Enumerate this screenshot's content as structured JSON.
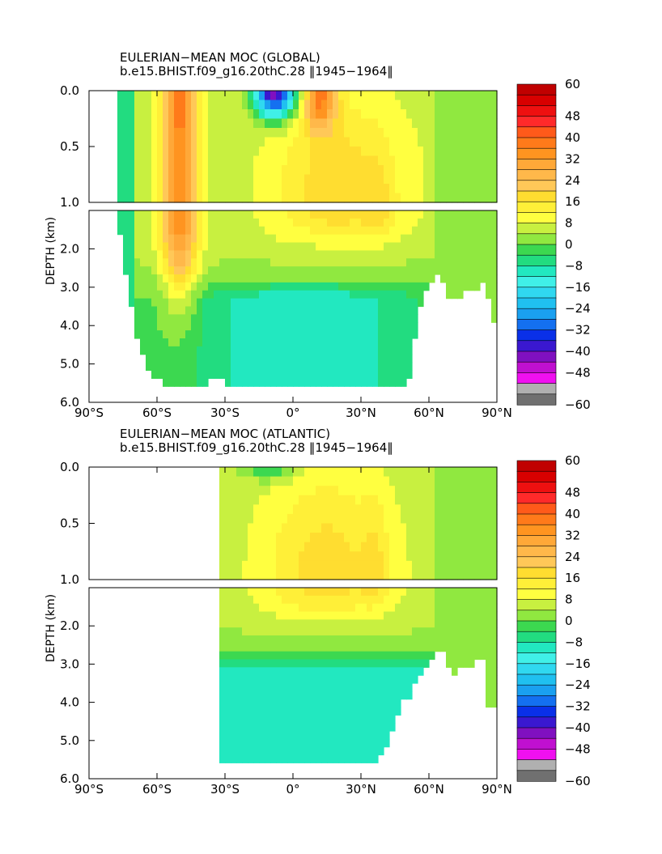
{
  "colors": {
    "background": "#ffffff",
    "axis": "#000000"
  },
  "colorbar": {
    "levels": [
      60,
      56,
      52,
      48,
      44,
      40,
      36,
      32,
      28,
      24,
      20,
      16,
      12,
      8,
      4,
      0,
      -4,
      -8,
      -12,
      -16,
      -20,
      -24,
      -28,
      -32,
      -36,
      -40,
      -44,
      -48,
      -52,
      -56
    ],
    "colors": [
      "#c00000",
      "#d80000",
      "#ee1010",
      "#ff2a2a",
      "#ff5a1a",
      "#ff7a1a",
      "#ff9420",
      "#ffa838",
      "#ffb84a",
      "#ffc858",
      "#ffdd30",
      "#ffef38",
      "#ffff40",
      "#c8f040",
      "#90e840",
      "#3cd850",
      "#22dc80",
      "#22e8c0",
      "#40f0e8",
      "#30d8f0",
      "#20c0f0",
      "#1aa0f0",
      "#1470f0",
      "#0a30e8",
      "#3a18d0",
      "#8010c0",
      "#c010d0",
      "#f010f0",
      "#b0b0b0",
      "#707070"
    ],
    "labels": [
      "60",
      "48",
      "40",
      "32",
      "24",
      "16",
      "8",
      "0",
      "−8",
      "−16",
      "−24",
      "−32",
      "−40",
      "−48",
      "−60"
    ],
    "label_levels": [
      60,
      48,
      40,
      32,
      24,
      16,
      8,
      0,
      -8,
      -16,
      -24,
      -32,
      -40,
      -48,
      -60
    ]
  },
  "chart_data": [
    {
      "type": "heatmap",
      "title": "EULERIAN−MEAN MOC (GLOBAL)",
      "subtitle": "b.e15.BHIST.f09_g16.20thC.28 ‖1945−1964‖",
      "ylabel": "DEPTH (km)",
      "xlim": [
        -90,
        90
      ],
      "ylim": [
        0,
        6
      ],
      "y_break_km": 1.0,
      "x_ticks": [
        -90,
        -60,
        -30,
        0,
        30,
        60,
        90
      ],
      "x_tick_labels": [
        "90°S",
        "60°S",
        "30°S",
        "0°",
        "30°N",
        "60°N",
        "90°N"
      ],
      "y_ticks_upper": [
        0.0,
        0.5,
        1.0
      ],
      "y_tick_labels_upper": [
        "0.0",
        "0.5",
        "1.0"
      ],
      "y_ticks_lower": [
        2.0,
        3.0,
        4.0,
        5.0,
        6.0
      ],
      "y_tick_labels_lower": [
        "2.0",
        "3.0",
        "4.0",
        "5.0",
        "6.0"
      ],
      "bathymetry": [
        [
          -78,
          0.7
        ],
        [
          -75,
          2.3
        ],
        [
          -72,
          3.4
        ],
        [
          -69,
          4.2
        ],
        [
          -66,
          4.8
        ],
        [
          -63,
          5.3
        ],
        [
          -57,
          5.5
        ],
        [
          -50,
          5.5
        ],
        [
          -45,
          5.5
        ],
        [
          -40,
          5.5
        ],
        [
          -34,
          5.4
        ],
        [
          -30,
          5.5
        ],
        [
          0,
          5.5
        ],
        [
          30,
          5.5
        ],
        [
          51,
          5.5
        ],
        [
          53,
          4.5
        ],
        [
          55,
          3.8
        ],
        [
          57,
          3.3
        ],
        [
          60,
          3.0
        ],
        [
          62,
          2.8
        ],
        [
          65,
          2.6
        ],
        [
          70,
          3.4
        ],
        [
          75,
          3.2
        ],
        [
          80,
          3.1
        ],
        [
          85,
          2.9
        ],
        [
          88,
          4.0
        ],
        [
          90,
          4.0
        ]
      ],
      "features": [
        {
          "lat": -50,
          "depth": 0.3,
          "value": 32
        },
        {
          "lat": -50,
          "depth": 2.5,
          "value": 28
        },
        {
          "lat": -10,
          "depth": 0.05,
          "value": -40
        },
        {
          "lat": 15,
          "depth": 0.1,
          "value": 36
        },
        {
          "lat": 30,
          "depth": 0.8,
          "value": 20
        },
        {
          "lat": 10,
          "depth": 1.6,
          "value": 16
        },
        {
          "lat": 0,
          "depth": 2.5,
          "value": 4
        },
        {
          "lat": 0,
          "depth": 4.3,
          "value": -6
        }
      ]
    },
    {
      "type": "heatmap",
      "title": "EULERIAN−MEAN MOC (ATLANTIC)",
      "subtitle": "b.e15.BHIST.f09_g16.20thC.28 ‖1945−1964‖",
      "ylabel": "DEPTH (km)",
      "xlim": [
        -90,
        90
      ],
      "ylim": [
        0,
        6
      ],
      "y_break_km": 1.0,
      "x_ticks": [
        -90,
        -60,
        -30,
        0,
        30,
        60,
        90
      ],
      "x_tick_labels": [
        "90°S",
        "60°S",
        "30°S",
        "0°",
        "30°N",
        "60°N",
        "90°N"
      ],
      "y_ticks_upper": [
        0.0,
        0.5,
        1.0
      ],
      "y_tick_labels_upper": [
        "0.0",
        "0.5",
        "1.0"
      ],
      "y_ticks_lower": [
        2.0,
        3.0,
        4.0,
        5.0,
        6.0
      ],
      "y_tick_labels_lower": [
        "2.0",
        "3.0",
        "4.0",
        "5.0",
        "6.0"
      ],
      "domain_south": -33,
      "bathymetry": [
        [
          -33,
          5.5
        ],
        [
          -25,
          5.5
        ],
        [
          -15,
          5.5
        ],
        [
          0,
          5.5
        ],
        [
          20,
          5.5
        ],
        [
          38,
          5.5
        ],
        [
          42,
          5.0
        ],
        [
          45,
          4.5
        ],
        [
          48,
          4.0
        ],
        [
          52,
          3.8
        ],
        [
          55,
          3.4
        ],
        [
          58,
          3.2
        ],
        [
          60,
          3.0
        ],
        [
          63,
          2.8
        ],
        [
          66,
          2.6
        ],
        [
          70,
          3.3
        ],
        [
          75,
          3.1
        ],
        [
          80,
          3.0
        ],
        [
          84,
          2.8
        ],
        [
          86,
          4.2
        ],
        [
          90,
          4.2
        ]
      ],
      "features": [
        {
          "lat": -10,
          "depth": 0.1,
          "value": -6
        },
        {
          "lat": 10,
          "depth": 0.9,
          "value": 16
        },
        {
          "lat": 35,
          "depth": 1.0,
          "value": 20
        },
        {
          "lat": 20,
          "depth": 2.4,
          "value": 4
        },
        {
          "lat": 10,
          "depth": 4.4,
          "value": -6
        }
      ]
    }
  ]
}
